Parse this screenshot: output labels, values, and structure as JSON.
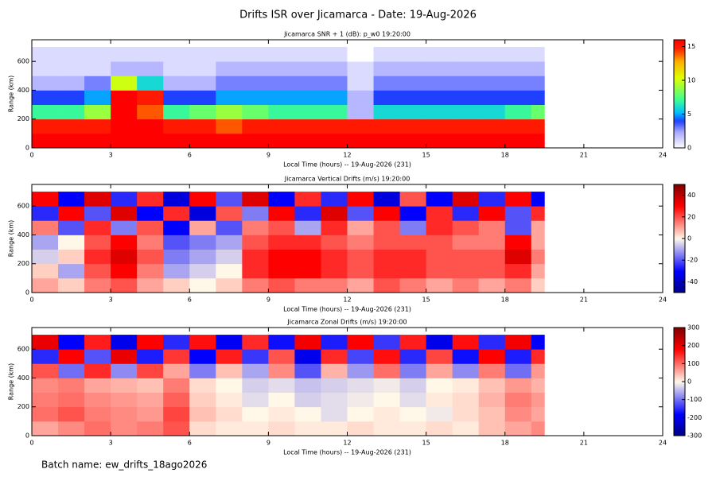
{
  "title": "Drifts ISR over Jicamarca - Date: 19-Aug-2026",
  "footer": "Batch name: ew_drifts_18ago2026",
  "chart_data": [
    {
      "type": "heatmap",
      "title": "Jicamarca SNR + 1 (dB): p_w0 19:20:00",
      "x_label": "Local Time (hours) -- 19-Aug-2026 (231)",
      "y_label": "Range (km)",
      "colormap": "snr",
      "x": [
        0,
        1,
        2,
        3,
        4,
        5,
        6,
        7,
        8,
        9,
        10,
        11,
        12,
        13,
        14,
        15,
        16,
        17,
        18,
        19,
        19.5
      ],
      "y": [
        0,
        100,
        200,
        300,
        400,
        500,
        600,
        700
      ],
      "z": [
        [
          16,
          16,
          16,
          16,
          16,
          16,
          16,
          16,
          16,
          16,
          16,
          16,
          16,
          16,
          16,
          16,
          16,
          16,
          16,
          16
        ],
        [
          15,
          15,
          15,
          16,
          16,
          15,
          15,
          14,
          15,
          15,
          15,
          15,
          15,
          15,
          15,
          15,
          15,
          15,
          15,
          15
        ],
        [
          7,
          7,
          9,
          16,
          14,
          7,
          8,
          9,
          8,
          7,
          7,
          7,
          2,
          6,
          6,
          6,
          6,
          6,
          7,
          8
        ],
        [
          4,
          4,
          5,
          16,
          15,
          4,
          4,
          5,
          5,
          5,
          5,
          5,
          2,
          4,
          4,
          4,
          4,
          4,
          4,
          4
        ],
        [
          2,
          2,
          3,
          10,
          6,
          2,
          2,
          3,
          3,
          3,
          3,
          3,
          1,
          3,
          3,
          3,
          3,
          3,
          3,
          3
        ],
        [
          1,
          1,
          1,
          2,
          2,
          1,
          1,
          2,
          2,
          2,
          2,
          2,
          1,
          2,
          2,
          2,
          2,
          2,
          2,
          2
        ],
        [
          1,
          1,
          1,
          1,
          1,
          1,
          1,
          1,
          1,
          1,
          1,
          1,
          0,
          1,
          1,
          1,
          1,
          1,
          1,
          1
        ]
      ],
      "xlim": [
        0,
        24
      ],
      "xticks": [
        0,
        3,
        6,
        9,
        12,
        15,
        18,
        21,
        24
      ],
      "ylim": [
        0,
        750
      ],
      "yticks": [
        0,
        200,
        400,
        600
      ],
      "zlim": [
        0,
        16
      ],
      "zticks": [
        0,
        5,
        10,
        15
      ]
    },
    {
      "type": "heatmap",
      "title": "Jicamarca Vertical Drifts (m/s) 19:20:00",
      "x_label": "Local Time (hours) -- 19-Aug-2026 (231)",
      "y_label": "Range (km)",
      "colormap": "diverging",
      "x": [
        0,
        1,
        2,
        3,
        4,
        5,
        6,
        7,
        8,
        9,
        10,
        11,
        12,
        13,
        14,
        15,
        16,
        17,
        18,
        19,
        19.5
      ],
      "y": [
        0,
        100,
        200,
        300,
        400,
        500,
        600,
        700
      ],
      "z": [
        [
          10,
          5,
          15,
          20,
          10,
          5,
          0,
          5,
          15,
          20,
          15,
          15,
          10,
          20,
          15,
          10,
          15,
          10,
          15,
          5
        ],
        [
          5,
          -10,
          20,
          30,
          15,
          -10,
          -5,
          0,
          25,
          30,
          30,
          25,
          20,
          25,
          25,
          20,
          20,
          20,
          25,
          10
        ],
        [
          -5,
          5,
          25,
          35,
          20,
          -15,
          -10,
          -5,
          25,
          30,
          30,
          25,
          20,
          25,
          25,
          20,
          20,
          20,
          35,
          15
        ],
        [
          -10,
          0,
          20,
          30,
          15,
          -20,
          -15,
          -10,
          20,
          25,
          25,
          20,
          15,
          20,
          20,
          20,
          15,
          15,
          30,
          10
        ],
        [
          15,
          -20,
          25,
          -15,
          20,
          -30,
          10,
          -20,
          15,
          20,
          -10,
          25,
          10,
          20,
          -15,
          25,
          20,
          15,
          -20,
          10
        ],
        [
          -25,
          30,
          -20,
          35,
          -30,
          25,
          -35,
          20,
          -15,
          30,
          -25,
          35,
          -20,
          30,
          -30,
          25,
          -25,
          30,
          -20,
          25
        ],
        [
          30,
          -30,
          35,
          -25,
          25,
          -35,
          30,
          -20,
          35,
          -30,
          25,
          -25,
          30,
          -35,
          20,
          -30,
          35,
          -25,
          30,
          -30
        ]
      ],
      "xlim": [
        0,
        24
      ],
      "xticks": [
        0,
        3,
        6,
        9,
        12,
        15,
        18,
        21,
        24
      ],
      "ylim": [
        0,
        750
      ],
      "yticks": [
        0,
        200,
        400,
        600
      ],
      "zlim": [
        -50,
        50
      ],
      "zticks": [
        -40,
        -20,
        0,
        20,
        40
      ]
    },
    {
      "type": "heatmap",
      "title": "Jicamarca Zonal Drifts (m/s) 19:20:00",
      "x_label": "Local Time (hours) -- 19-Aug-2026 (231)",
      "y_label": "Range (km)",
      "colormap": "diverging",
      "x": [
        0,
        1,
        2,
        3,
        4,
        5,
        6,
        7,
        8,
        9,
        10,
        11,
        12,
        13,
        14,
        15,
        16,
        17,
        18,
        19,
        19.5
      ],
      "y": [
        0,
        100,
        200,
        300,
        400,
        500,
        600,
        700
      ],
      "z": [
        [
          60,
          80,
          100,
          80,
          90,
          120,
          20,
          10,
          10,
          20,
          10,
          10,
          20,
          10,
          10,
          20,
          10,
          40,
          60,
          80
        ],
        [
          100,
          120,
          90,
          80,
          70,
          130,
          40,
          20,
          0,
          10,
          0,
          -20,
          0,
          10,
          0,
          -10,
          20,
          40,
          80,
          60
        ],
        [
          90,
          100,
          80,
          70,
          60,
          110,
          30,
          10,
          -20,
          0,
          -30,
          -20,
          -10,
          0,
          -20,
          10,
          20,
          50,
          90,
          70
        ],
        [
          80,
          90,
          60,
          50,
          40,
          90,
          20,
          0,
          -30,
          -20,
          -40,
          -30,
          -20,
          -10,
          -30,
          0,
          10,
          40,
          70,
          50
        ],
        [
          120,
          -100,
          150,
          -80,
          130,
          60,
          -90,
          40,
          -60,
          80,
          -120,
          50,
          -70,
          100,
          -90,
          60,
          -80,
          90,
          -100,
          70
        ],
        [
          -150,
          180,
          -120,
          200,
          -160,
          140,
          -180,
          160,
          -140,
          120,
          -200,
          150,
          -130,
          170,
          -150,
          130,
          -170,
          180,
          -160,
          150
        ],
        [
          200,
          -180,
          160,
          -200,
          180,
          -150,
          170,
          -190,
          150,
          -170,
          190,
          -160,
          180,
          -140,
          160,
          -200,
          170,
          -150,
          190,
          -180
        ]
      ],
      "xlim": [
        0,
        24
      ],
      "xticks": [
        0,
        3,
        6,
        9,
        12,
        15,
        18,
        21,
        24
      ],
      "ylim": [
        0,
        750
      ],
      "yticks": [
        0,
        200,
        400,
        600
      ],
      "zlim": [
        -300,
        300
      ],
      "zticks": [
        -300,
        -200,
        -100,
        0,
        100,
        200,
        300
      ]
    }
  ]
}
